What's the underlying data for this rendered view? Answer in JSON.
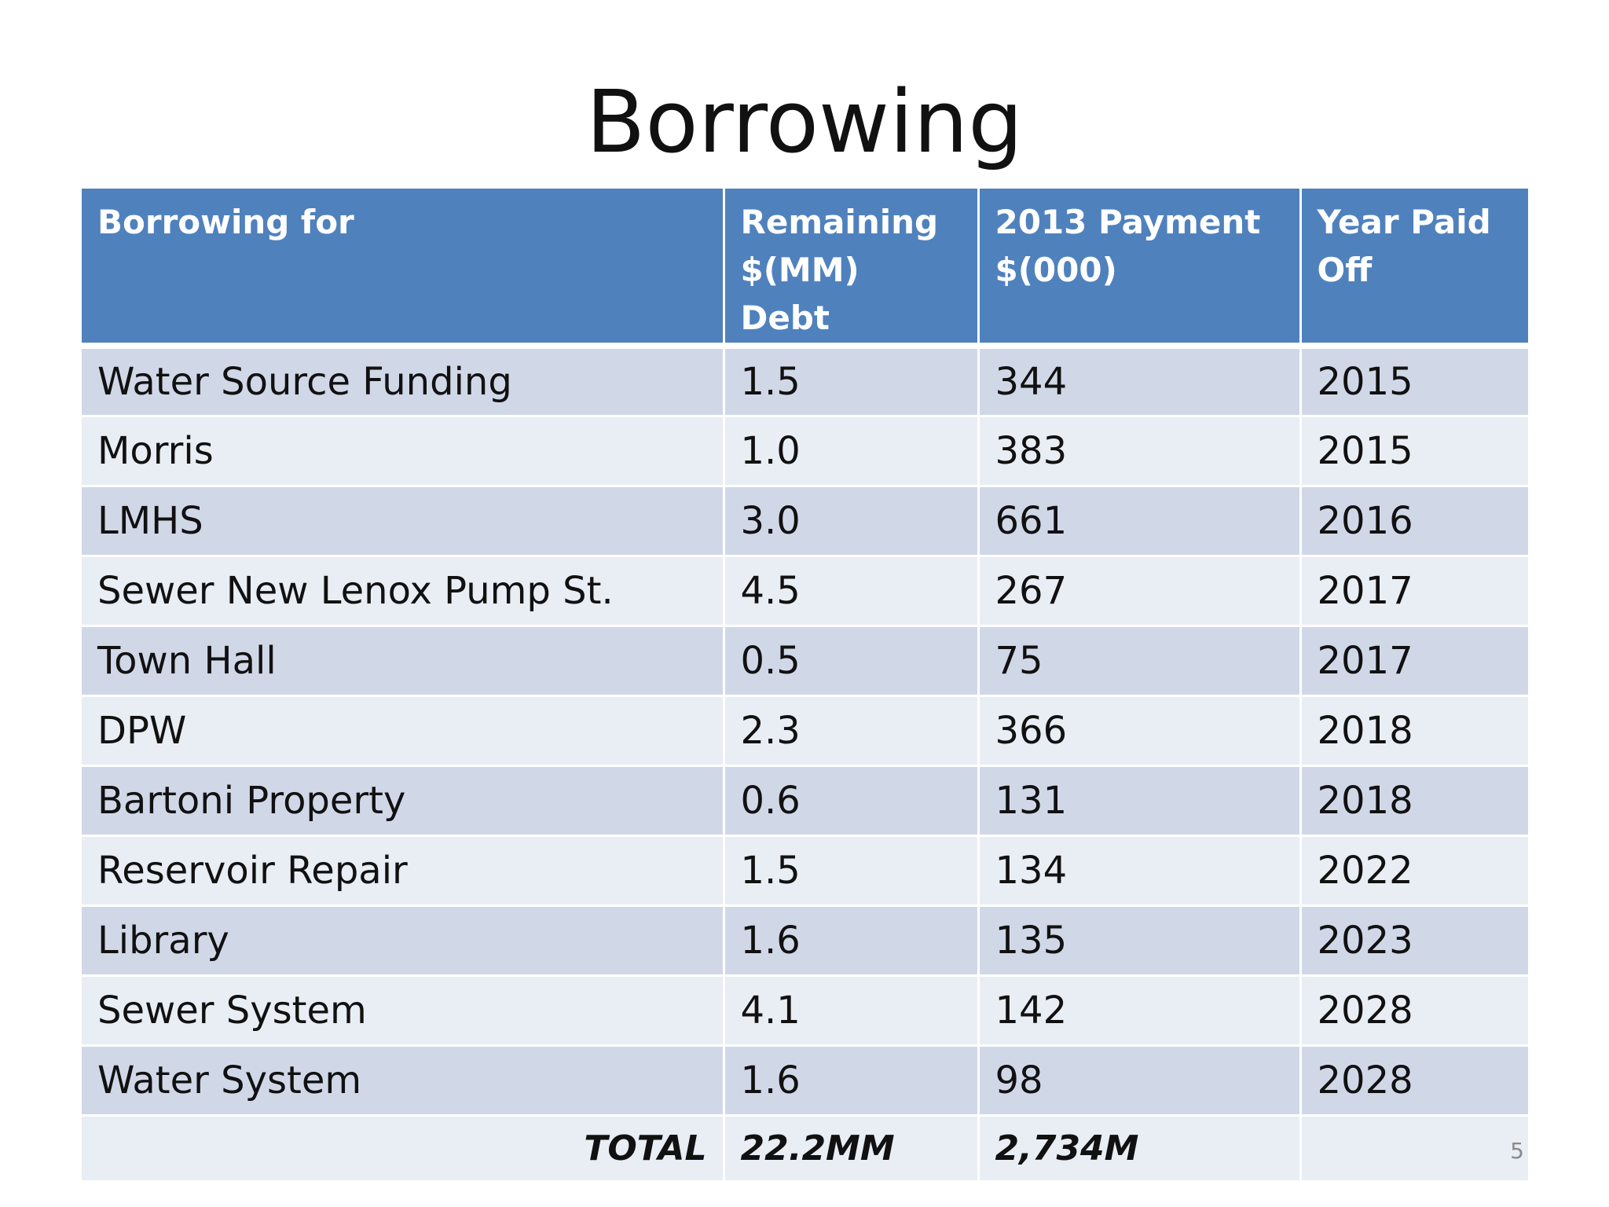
{
  "title": "Borrowing",
  "table": {
    "headers": [
      [
        "Borrowing for"
      ],
      [
        "Remaining",
        "$(MM)",
        "Debt"
      ],
      [
        "2013 Payment",
        "$(000)"
      ],
      [
        "Year Paid",
        "Off"
      ]
    ],
    "rows": [
      [
        "Water Source Funding",
        "1.5",
        "344",
        "2015"
      ],
      [
        "Morris",
        "1.0",
        "383",
        "2015"
      ],
      [
        "LMHS",
        "3.0",
        "661",
        "2016"
      ],
      [
        "Sewer New Lenox Pump St.",
        "4.5",
        "267",
        "2017"
      ],
      [
        "Town Hall",
        "0.5",
        "75",
        "2017"
      ],
      [
        "DPW",
        "2.3",
        "366",
        "2018"
      ],
      [
        "Bartoni Property",
        "0.6",
        "131",
        "2018"
      ],
      [
        "Reservoir Repair",
        "1.5",
        "134",
        "2022"
      ],
      [
        "Library",
        "1.6",
        "135",
        "2023"
      ],
      [
        "Sewer System",
        "4.1",
        "142",
        "2028"
      ],
      [
        "Water System",
        "1.6",
        "98",
        "2028"
      ]
    ],
    "total": {
      "label": "TOTAL",
      "remaining": "22.2MM",
      "payment": "2,734M",
      "year": ""
    }
  },
  "page_number": "5",
  "colors": {
    "header_bg": "#4f81bd",
    "row_odd": "#d0d8e8",
    "row_even": "#e9edf4"
  }
}
